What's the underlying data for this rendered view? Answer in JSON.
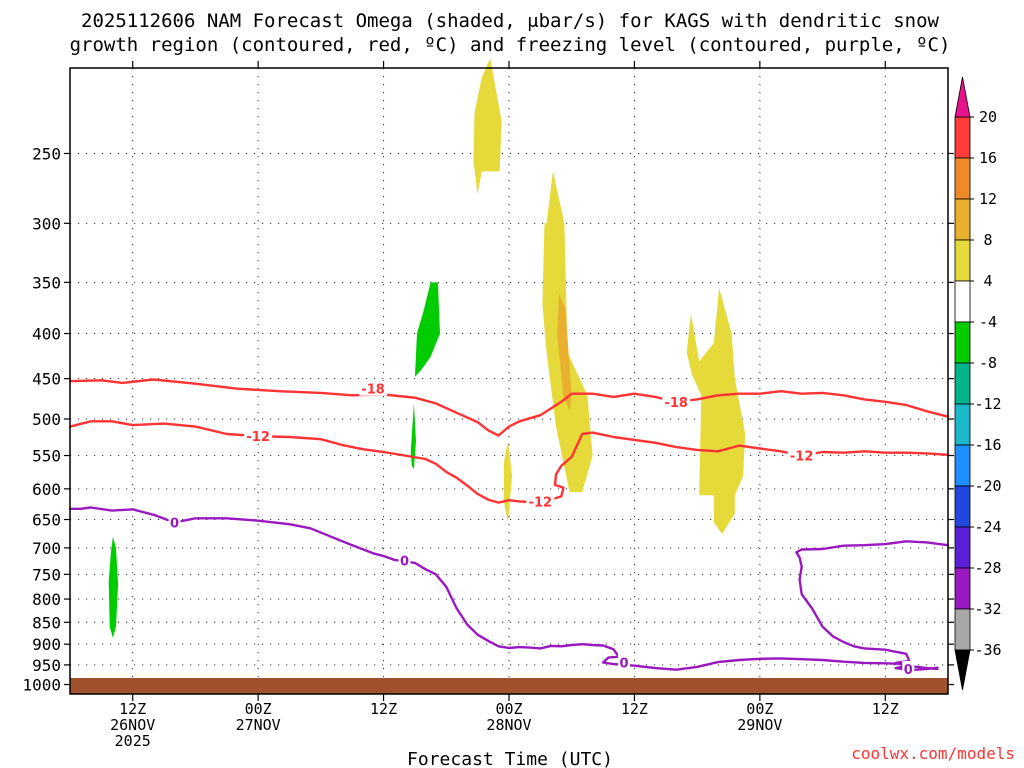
{
  "chart_data": {
    "type": "time-height cross section",
    "title_line1": "2025112606 NAM Forecast Omega (shaded, μbar/s) for KAGS with dendritic snow",
    "title_line2": "growth region (contoured, red, ºC) and freezing level (contoured, purple, ºC)",
    "xlabel": "Forecast Time (UTC)",
    "credit": "coolwx.com/models",
    "y_axis_label_side": "left",
    "pressure_ticks": [
      250,
      300,
      350,
      400,
      450,
      500,
      550,
      600,
      650,
      700,
      750,
      800,
      850,
      900,
      950,
      1000
    ],
    "pressure_range_hpa": [
      200,
      1025
    ],
    "time_range_hours": [
      0,
      84
    ],
    "x_ticks": [
      {
        "hour": 6,
        "line1": "12Z",
        "line2": "26NOV",
        "line3": "2025"
      },
      {
        "hour": 18,
        "line1": "00Z",
        "line2": "27NOV",
        "line3": ""
      },
      {
        "hour": 30,
        "line1": "12Z",
        "line2": "",
        "line3": ""
      },
      {
        "hour": 42,
        "line1": "00Z",
        "line2": "28NOV",
        "line3": ""
      },
      {
        "hour": 54,
        "line1": "12Z",
        "line2": "",
        "line3": ""
      },
      {
        "hour": 66,
        "line1": "00Z",
        "line2": "29NOV",
        "line3": ""
      },
      {
        "hour": 78,
        "line1": "12Z",
        "line2": "",
        "line3": ""
      }
    ],
    "colorbar": {
      "labels": [
        "20",
        "16",
        "12",
        "8",
        "4",
        "-4",
        "-8",
        "-12",
        "-16",
        "-20",
        "-24",
        "-28",
        "-32",
        "-36"
      ],
      "bins": [
        {
          "lo": 16,
          "hi": 20,
          "color": "#ff3b3b"
        },
        {
          "lo": 12,
          "hi": 16,
          "color": "#f08a28"
        },
        {
          "lo": 8,
          "hi": 12,
          "color": "#e8b02e"
        },
        {
          "lo": 4,
          "hi": 8,
          "color": "#e6d93a"
        },
        {
          "lo": -4,
          "hi": 4,
          "color": "#ffffff"
        },
        {
          "lo": -8,
          "hi": -4,
          "color": "#00cc00"
        },
        {
          "lo": -12,
          "hi": -8,
          "color": "#00b38a"
        },
        {
          "lo": -16,
          "hi": -12,
          "color": "#1ab8c8"
        },
        {
          "lo": -20,
          "hi": -16,
          "color": "#1e90ff"
        },
        {
          "lo": -24,
          "hi": -20,
          "color": "#2246e0"
        },
        {
          "lo": -28,
          "hi": -24,
          "color": "#5a1fd6"
        },
        {
          "lo": -32,
          "hi": -28,
          "color": "#9a18c0"
        },
        {
          "lo": -36,
          "hi": -32,
          "color": "#a8a8a8"
        }
      ],
      "top_arrow_color": "#e8138c",
      "bottom_arrow_color": "#000000"
    },
    "omega_shaded_regions": [
      {
        "name": "upward-motion-green-low",
        "value_range": [
          -8,
          -4
        ],
        "color": "#00cc00",
        "points": [
          [
            3.7,
            765
          ],
          [
            3.9,
            710
          ],
          [
            4.1,
            680
          ],
          [
            4.4,
            700
          ],
          [
            4.6,
            770
          ],
          [
            4.4,
            860
          ],
          [
            4.1,
            885
          ],
          [
            3.8,
            860
          ]
        ]
      },
      {
        "name": "upward-motion-green-mid",
        "value_range": [
          -8,
          -4
        ],
        "color": "#00cc00",
        "points": [
          [
            33.0,
            448
          ],
          [
            33.2,
            400
          ],
          [
            33.8,
            378
          ],
          [
            34.5,
            350
          ],
          [
            35.2,
            350
          ],
          [
            35.4,
            400
          ],
          [
            34.5,
            425
          ],
          [
            33.6,
            440
          ]
        ]
      },
      {
        "name": "upward-motion-green-small",
        "value_range": [
          -8,
          -4
        ],
        "color": "#00cc00",
        "points": [
          [
            32.6,
            545
          ],
          [
            32.9,
            480
          ],
          [
            33.1,
            530
          ],
          [
            32.9,
            570
          ],
          [
            32.7,
            565
          ]
        ]
      },
      {
        "name": "sinking-yellow-upper",
        "value_range": [
          4,
          8
        ],
        "color": "#e6d93a",
        "points": [
          [
            38.6,
            255
          ],
          [
            38.7,
            225
          ],
          [
            39.4,
            205
          ],
          [
            40.2,
            195
          ],
          [
            41.3,
            230
          ],
          [
            41.1,
            262
          ],
          [
            39.4,
            262
          ],
          [
            39.0,
            278
          ]
        ]
      },
      {
        "name": "sinking-yellow-main",
        "value_range": [
          4,
          8
        ],
        "color": "#e6d93a",
        "points": [
          [
            45.6,
            300
          ],
          [
            46.2,
            262
          ],
          [
            47.3,
            300
          ],
          [
            47.6,
            420
          ],
          [
            49.5,
            470
          ],
          [
            50.0,
            550
          ],
          [
            49.0,
            605
          ],
          [
            47.8,
            605
          ],
          [
            46.5,
            510
          ],
          [
            45.6,
            420
          ],
          [
            45.2,
            370
          ],
          [
            45.4,
            300
          ]
        ]
      },
      {
        "name": "sinking-orange-core",
        "value_range": [
          8,
          12
        ],
        "color": "#e8b02e",
        "points": [
          [
            46.8,
            360
          ],
          [
            47.4,
            375
          ],
          [
            48.0,
            470
          ],
          [
            47.8,
            490
          ],
          [
            47.2,
            470
          ],
          [
            46.6,
            400
          ]
        ]
      },
      {
        "name": "sinking-yellow-narrow",
        "value_range": [
          4,
          8
        ],
        "color": "#e6d93a",
        "points": [
          [
            41.5,
            560
          ],
          [
            41.9,
            530
          ],
          [
            42.3,
            580
          ],
          [
            41.9,
            655
          ],
          [
            41.5,
            620
          ]
        ]
      },
      {
        "name": "sinking-yellow-right",
        "value_range": [
          4,
          8
        ],
        "color": "#e6d93a",
        "points": [
          [
            59.0,
            420
          ],
          [
            59.4,
            380
          ],
          [
            60.2,
            430
          ],
          [
            61.6,
            410
          ],
          [
            62.1,
            355
          ],
          [
            63.3,
            400
          ],
          [
            63.6,
            450
          ],
          [
            64.6,
            520
          ],
          [
            64.4,
            580
          ],
          [
            63.6,
            610
          ],
          [
            63.6,
            640
          ],
          [
            62.4,
            675
          ],
          [
            61.6,
            655
          ],
          [
            61.6,
            610
          ],
          [
            60.2,
            610
          ],
          [
            60.4,
            470
          ],
          [
            59.5,
            445
          ]
        ]
      }
    ],
    "dendritic_growth_contours": [
      {
        "label": "-18",
        "color": "#ff3333",
        "label_points": [
          [
            29,
            462
          ],
          [
            58,
            478
          ]
        ],
        "points": [
          [
            0,
            453
          ],
          [
            3,
            452
          ],
          [
            5,
            455
          ],
          [
            8,
            451
          ],
          [
            12,
            456
          ],
          [
            16,
            462
          ],
          [
            20,
            465
          ],
          [
            24,
            467
          ],
          [
            27,
            470
          ],
          [
            30,
            469
          ],
          [
            33,
            473
          ],
          [
            35,
            480
          ],
          [
            37,
            492
          ],
          [
            39,
            504
          ],
          [
            40,
            515
          ],
          [
            41,
            522
          ],
          [
            42,
            510
          ],
          [
            43,
            503
          ],
          [
            45,
            495
          ],
          [
            47,
            478
          ],
          [
            48,
            468
          ],
          [
            50,
            468
          ],
          [
            52,
            472
          ],
          [
            54,
            468
          ],
          [
            56,
            472
          ],
          [
            58,
            478
          ],
          [
            60,
            475
          ],
          [
            62,
            470
          ],
          [
            64,
            468
          ],
          [
            66,
            468
          ],
          [
            68,
            465
          ],
          [
            70,
            468
          ],
          [
            72,
            467
          ],
          [
            74,
            470
          ],
          [
            76,
            475
          ],
          [
            78,
            478
          ],
          [
            80,
            482
          ],
          [
            82,
            490
          ],
          [
            84,
            497
          ]
        ]
      },
      {
        "label": "-12",
        "color": "#ff3333",
        "label_points": [
          [
            18,
            523
          ],
          [
            45,
            620
          ],
          [
            70,
            550
          ]
        ],
        "points": [
          [
            0,
            510
          ],
          [
            2,
            503
          ],
          [
            4,
            503
          ],
          [
            6,
            508
          ],
          [
            9,
            506
          ],
          [
            12,
            510
          ],
          [
            15,
            520
          ],
          [
            18,
            523
          ],
          [
            21,
            524
          ],
          [
            24,
            527
          ],
          [
            26,
            535
          ],
          [
            28,
            541
          ],
          [
            30,
            545
          ],
          [
            32,
            550
          ],
          [
            34,
            555
          ],
          [
            35,
            562
          ],
          [
            36,
            574
          ],
          [
            37,
            583
          ],
          [
            38,
            595
          ],
          [
            39,
            608
          ],
          [
            40,
            617
          ],
          [
            41,
            622
          ],
          [
            42,
            618
          ],
          [
            43,
            620
          ],
          [
            44,
            621
          ],
          [
            45,
            620
          ],
          [
            46,
            617
          ],
          [
            47,
            612
          ],
          [
            47.2,
            598
          ],
          [
            46.4,
            594
          ],
          [
            46.5,
            578
          ],
          [
            47.0,
            565
          ],
          [
            48.0,
            552
          ],
          [
            49.0,
            520
          ],
          [
            50,
            518
          ],
          [
            52,
            524
          ],
          [
            54,
            528
          ],
          [
            56,
            532
          ],
          [
            58,
            538
          ],
          [
            60,
            542
          ],
          [
            62,
            544
          ],
          [
            63,
            540
          ],
          [
            64,
            536
          ],
          [
            66,
            540
          ],
          [
            68,
            544
          ],
          [
            70,
            550
          ],
          [
            72,
            545
          ],
          [
            74,
            546
          ],
          [
            76,
            544
          ],
          [
            78,
            546
          ],
          [
            80,
            546
          ],
          [
            82,
            547
          ],
          [
            84,
            549
          ]
        ]
      }
    ],
    "freezing_level_contours": [
      {
        "label": "0",
        "color": "#9a18c0",
        "label_points": [
          [
            10,
            655
          ],
          [
            32,
            723
          ],
          [
            53,
            944
          ]
        ],
        "points": [
          [
            0,
            632
          ],
          [
            1,
            632
          ],
          [
            2,
            630
          ],
          [
            4,
            635
          ],
          [
            6,
            633
          ],
          [
            8,
            642
          ],
          [
            10,
            655
          ],
          [
            12,
            648
          ],
          [
            15,
            648
          ],
          [
            18,
            652
          ],
          [
            21,
            658
          ],
          [
            23,
            665
          ],
          [
            25,
            680
          ],
          [
            27,
            695
          ],
          [
            29,
            710
          ],
          [
            30,
            715
          ],
          [
            31,
            722
          ],
          [
            33,
            728
          ],
          [
            34,
            740
          ],
          [
            35,
            750
          ],
          [
            36,
            775
          ],
          [
            37,
            820
          ],
          [
            38,
            855
          ],
          [
            39,
            878
          ],
          [
            40,
            892
          ],
          [
            41,
            905
          ],
          [
            42,
            909
          ],
          [
            43,
            907
          ],
          [
            44,
            908
          ],
          [
            45,
            910
          ],
          [
            46,
            904
          ],
          [
            47,
            905
          ],
          [
            48,
            902
          ],
          [
            49,
            900
          ],
          [
            50,
            902
          ],
          [
            51,
            903
          ],
          [
            52,
            912
          ],
          [
            52.5,
            930
          ],
          [
            51.5,
            932
          ],
          [
            51,
            944
          ],
          [
            52,
            948
          ],
          [
            54,
            952
          ],
          [
            56,
            958
          ],
          [
            58,
            962
          ],
          [
            60,
            955
          ],
          [
            62,
            943
          ],
          [
            64,
            938
          ],
          [
            66,
            935
          ],
          [
            68,
            934
          ],
          [
            70,
            936
          ],
          [
            72,
            938
          ],
          [
            74,
            942
          ],
          [
            76,
            945
          ],
          [
            78,
            946
          ],
          [
            80,
            948
          ],
          [
            80.2,
            952
          ],
          [
            79,
            958
          ],
          [
            80,
            962
          ],
          [
            81,
            962
          ],
          [
            82,
            960
          ],
          [
            83,
            957
          ]
        ]
      },
      {
        "label": "0",
        "color": "#9a18c0",
        "label_points": [
          [
            80.2,
            960
          ]
        ],
        "points": [
          [
            84,
            695
          ],
          [
            82,
            690
          ],
          [
            80,
            688
          ],
          [
            78,
            693
          ],
          [
            76,
            695
          ],
          [
            74,
            696
          ],
          [
            72,
            702
          ],
          [
            70,
            703
          ],
          [
            69.5,
            708
          ],
          [
            69.8,
            718
          ],
          [
            70.0,
            735
          ],
          [
            69.8,
            760
          ],
          [
            70.0,
            790
          ],
          [
            71,
            820
          ],
          [
            72,
            860
          ],
          [
            73,
            882
          ],
          [
            74,
            895
          ],
          [
            75,
            905
          ],
          [
            76,
            910
          ],
          [
            78,
            913
          ],
          [
            79,
            918
          ],
          [
            80,
            923
          ],
          [
            80.3,
            940
          ],
          [
            79,
            945
          ],
          [
            80,
            952
          ],
          [
            82,
            958
          ],
          [
            83,
            960
          ]
        ]
      }
    ]
  }
}
